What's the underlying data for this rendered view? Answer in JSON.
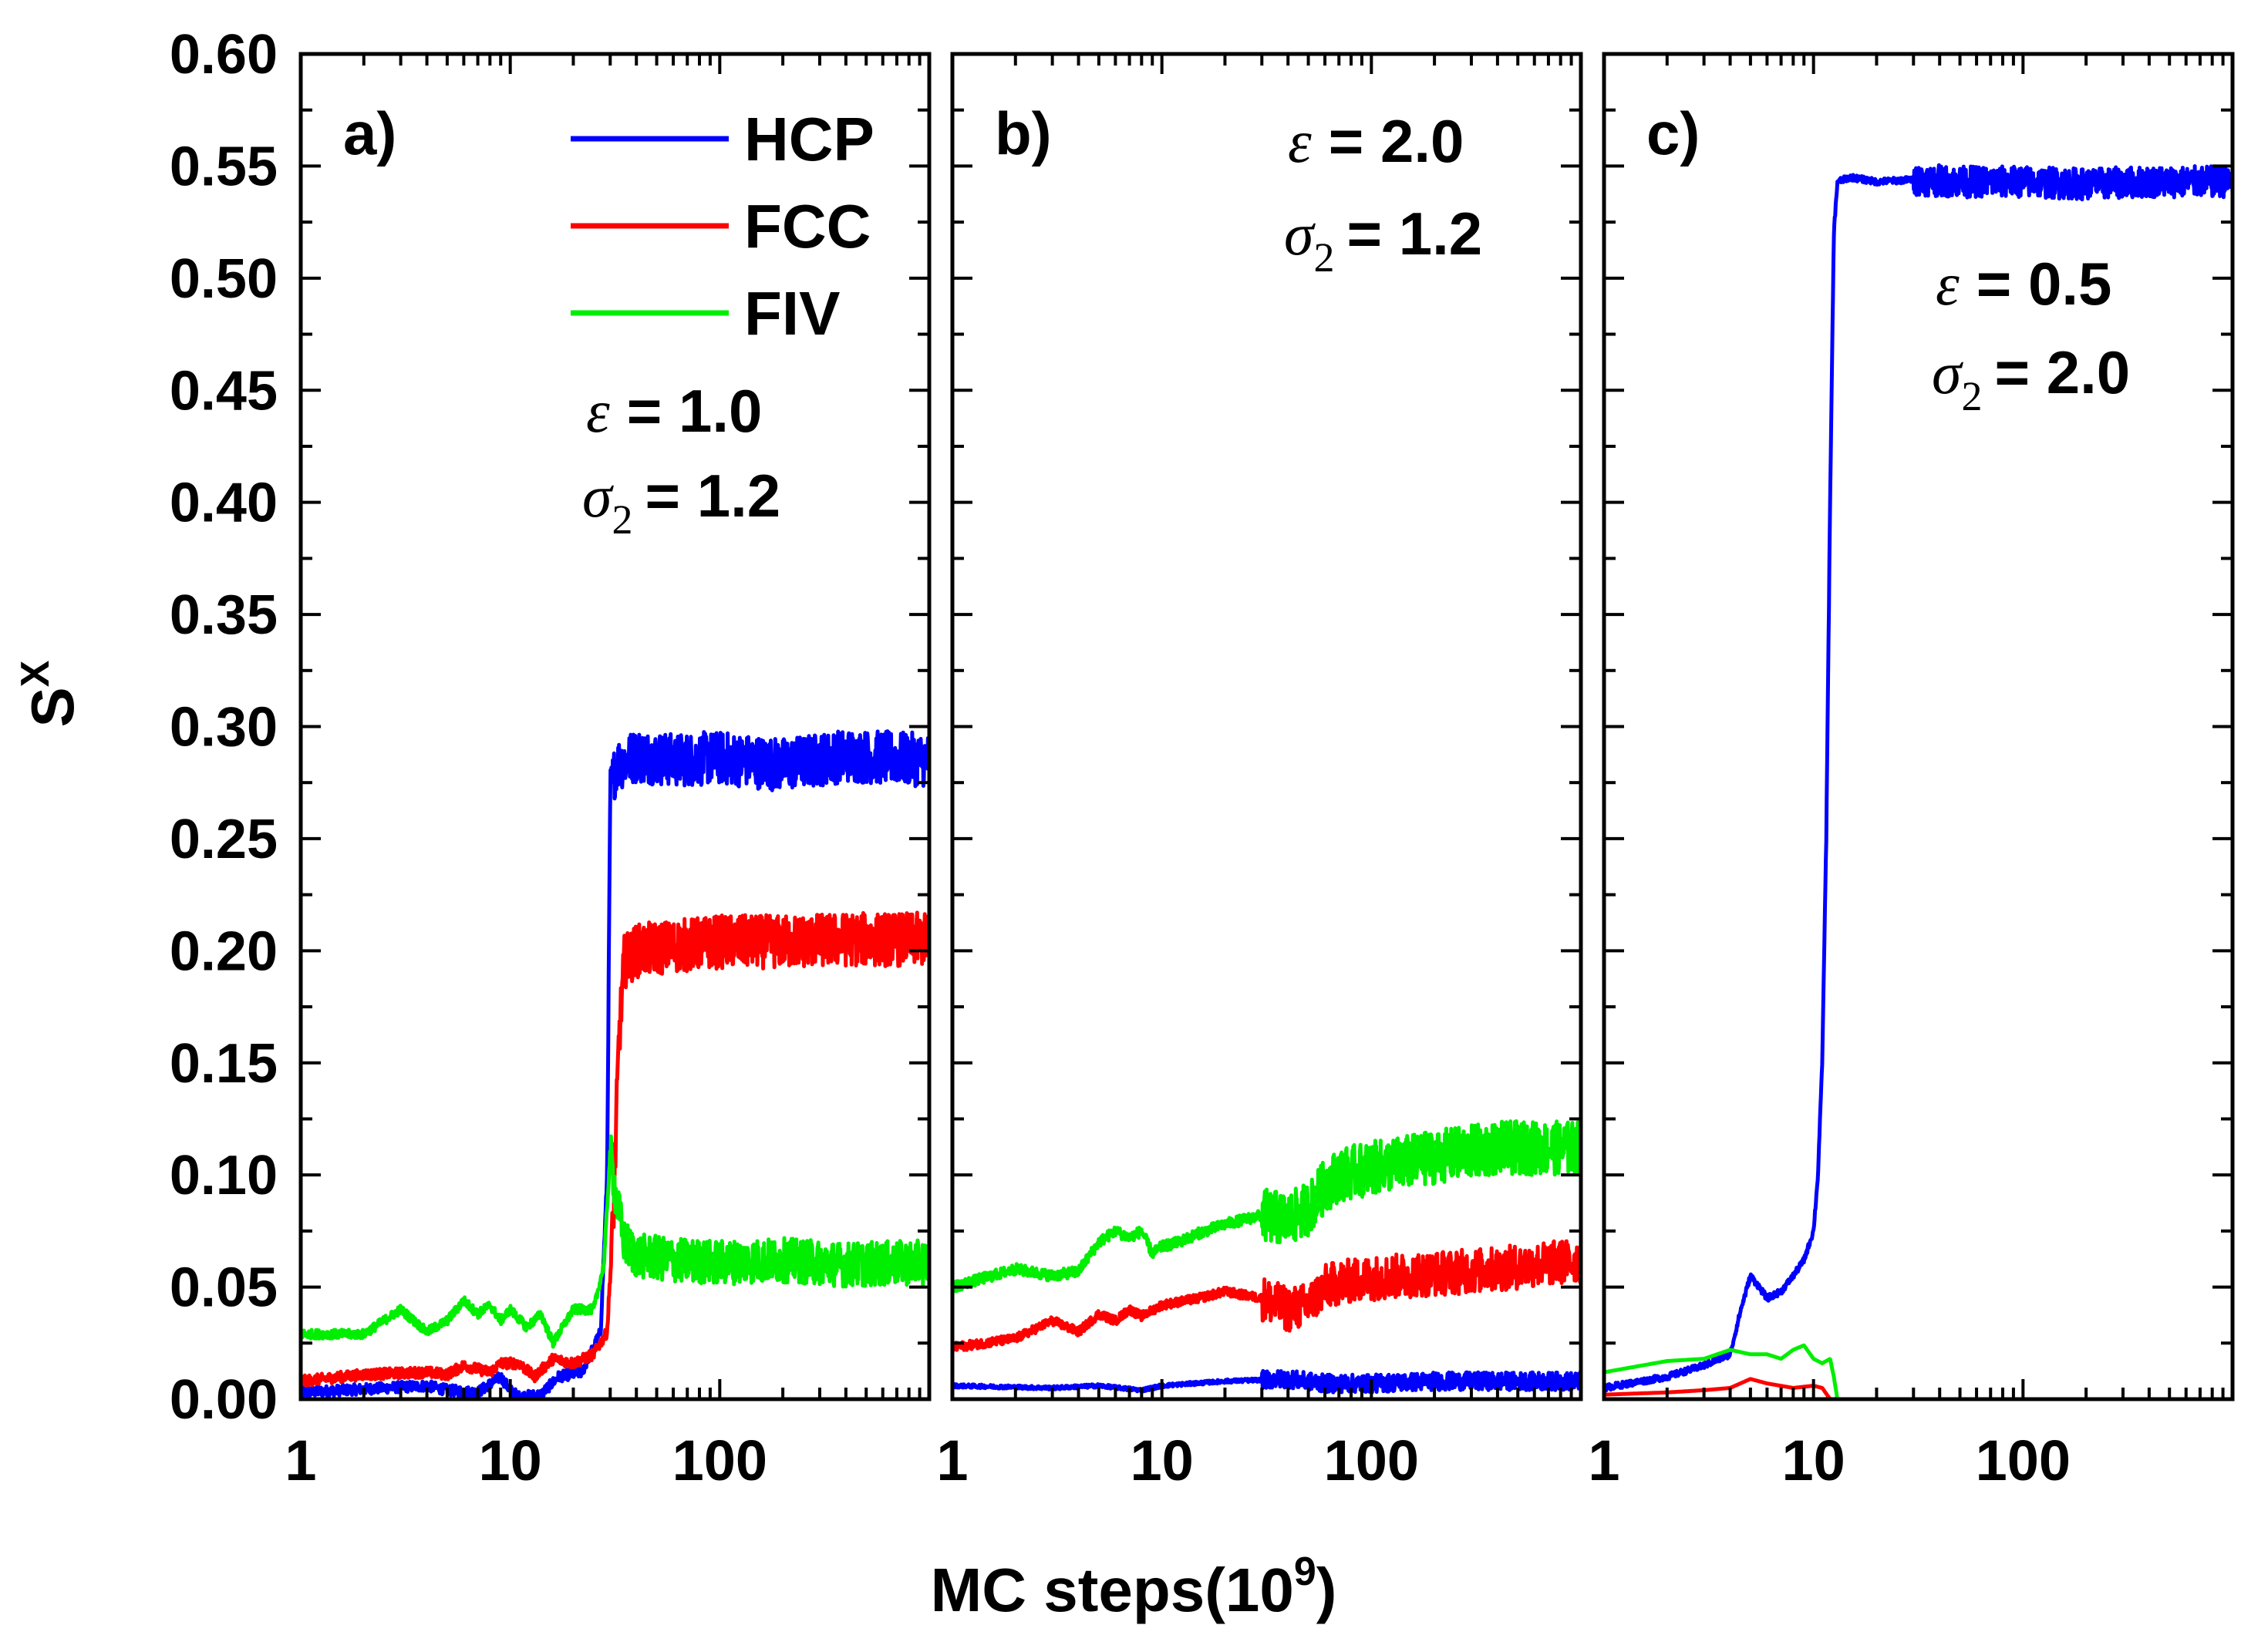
{
  "figure": {
    "ylabel": "S",
    "ylabel_sup": "X",
    "xlabel": "MC steps(10",
    "xlabel_sup": "9",
    "xlabel_close": ")"
  },
  "legend": [
    {
      "name": "HCP",
      "color": "#0000ff"
    },
    {
      "name": "FCC",
      "color": "#ff0000"
    },
    {
      "name": "FIV",
      "color": "#00ee00"
    }
  ],
  "chart_data": [
    {
      "type": "line",
      "panel_label": "a)",
      "xscale": "log",
      "xlim": [
        1,
        1000
      ],
      "ylim": [
        0,
        0.6
      ],
      "xticks": [
        "1",
        "10",
        "100"
      ],
      "yticks": [
        "0.00",
        "0.05",
        "0.10",
        "0.15",
        "0.20",
        "0.25",
        "0.30",
        "0.35",
        "0.40",
        "0.45",
        "0.50",
        "0.55",
        "0.60"
      ],
      "params": {
        "eps_sym": "ε",
        "eps_val": "= 1.0",
        "sigma_sym": "σ",
        "sigma_sub": "2",
        "sigma_val": "= 1.2"
      },
      "series": [
        {
          "name": "HCP",
          "color": "#0000ff",
          "x": [
            1,
            4,
            5,
            7,
            9,
            10,
            11,
            14,
            17,
            22,
            27,
            29,
            30,
            32,
            40,
            60,
            100,
            200,
            400,
            1000
          ],
          "y": [
            0.003,
            0.006,
            0.004,
            0.003,
            0.01,
            0.004,
            0.001,
            0.002,
            0.01,
            0.012,
            0.03,
            0.1,
            0.27,
            0.283,
            0.287,
            0.285,
            0.286,
            0.283,
            0.287,
            0.285
          ],
          "noise": 0.012
        },
        {
          "name": "FCC",
          "color": "#ff0000",
          "x": [
            1,
            2,
            4,
            5,
            6,
            8,
            9,
            11,
            13,
            16,
            20,
            25,
            29,
            31,
            33,
            35,
            40,
            60,
            100,
            200,
            400,
            1000
          ],
          "y": [
            0.008,
            0.011,
            0.012,
            0.011,
            0.015,
            0.012,
            0.016,
            0.016,
            0.01,
            0.018,
            0.016,
            0.02,
            0.03,
            0.08,
            0.16,
            0.195,
            0.2,
            0.202,
            0.204,
            0.204,
            0.205,
            0.205
          ],
          "noise": 0.012
        },
        {
          "name": "FIV",
          "color": "#00ee00",
          "x": [
            1,
            2,
            3,
            4,
            5,
            6,
            7,
            8,
            9,
            10,
            12,
            14,
            16,
            20,
            25,
            28,
            30,
            32,
            35,
            40,
            60,
            100,
            200,
            400,
            1000
          ],
          "y": [
            0.029,
            0.029,
            0.04,
            0.03,
            0.035,
            0.044,
            0.038,
            0.042,
            0.035,
            0.04,
            0.032,
            0.038,
            0.025,
            0.04,
            0.04,
            0.06,
            0.11,
            0.09,
            0.07,
            0.064,
            0.062,
            0.061,
            0.062,
            0.06,
            0.061
          ],
          "noise": 0.01
        }
      ]
    },
    {
      "type": "line",
      "panel_label": "b)",
      "xscale": "log",
      "xlim": [
        1,
        1000
      ],
      "ylim": [
        0,
        0.6
      ],
      "xticks": [
        "1",
        "10",
        "100"
      ],
      "params": {
        "eps_sym": "ε",
        "eps_val": "= 2.0",
        "sigma_sym": "σ",
        "sigma_sub": "2",
        "sigma_val": "= 1.2"
      },
      "series": [
        {
          "name": "HCP",
          "color": "#0000ff",
          "x": [
            1,
            3,
            5,
            8,
            10,
            20,
            40,
            60,
            100,
            200,
            400,
            1000
          ],
          "y": [
            0.006,
            0.005,
            0.006,
            0.004,
            0.006,
            0.008,
            0.009,
            0.007,
            0.007,
            0.008,
            0.008,
            0.008
          ],
          "noise": 0.004
        },
        {
          "name": "FCC",
          "color": "#ff0000",
          "x": [
            1,
            2,
            3,
            4,
            5,
            6,
            7,
            8,
            10,
            15,
            20,
            30,
            40,
            50,
            60,
            70,
            100,
            200,
            400,
            1000
          ],
          "y": [
            0.023,
            0.027,
            0.035,
            0.03,
            0.038,
            0.035,
            0.04,
            0.037,
            0.042,
            0.045,
            0.048,
            0.045,
            0.04,
            0.042,
            0.05,
            0.052,
            0.054,
            0.056,
            0.058,
            0.062
          ],
          "noise": 0.01
        },
        {
          "name": "FIV",
          "color": "#00ee00",
          "x": [
            1,
            2,
            3,
            4,
            5,
            6,
            7,
            8,
            9,
            10,
            12,
            15,
            20,
            30,
            40,
            50,
            60,
            70,
            100,
            200,
            400,
            1000
          ],
          "y": [
            0.05,
            0.058,
            0.055,
            0.057,
            0.07,
            0.075,
            0.072,
            0.075,
            0.065,
            0.068,
            0.07,
            0.074,
            0.078,
            0.082,
            0.08,
            0.085,
            0.095,
            0.1,
            0.103,
            0.108,
            0.112,
            0.112
          ],
          "noise": 0.012
        }
      ]
    },
    {
      "type": "line",
      "panel_label": "c)",
      "xscale": "log",
      "xlim": [
        1,
        1000
      ],
      "ylim": [
        0,
        0.6
      ],
      "xticks": [
        "1",
        "10",
        "100"
      ],
      "params": {
        "eps_sym": "ε",
        "eps_val": "= 0.5",
        "sigma_sym": "σ",
        "sigma_sub": "2",
        "sigma_val": "= 2.0"
      },
      "series": [
        {
          "name": "HCP",
          "color": "#0000ff",
          "x": [
            1,
            2,
            3,
            4,
            4.5,
            5,
            5.5,
            6,
            7,
            8,
            9,
            10,
            10.5,
            11,
            11.5,
            12,
            12.5,
            13,
            15,
            20,
            30,
            50,
            100,
            200,
            400,
            1000
          ],
          "y": [
            0.005,
            0.01,
            0.015,
            0.02,
            0.04,
            0.055,
            0.05,
            0.045,
            0.048,
            0.055,
            0.062,
            0.075,
            0.1,
            0.15,
            0.25,
            0.4,
            0.52,
            0.543,
            0.545,
            0.543,
            0.544,
            0.543,
            0.543,
            0.542,
            0.543,
            0.543
          ],
          "noise": 0.007
        },
        {
          "name": "FCC",
          "color": "#ff0000",
          "x": [
            1,
            2,
            3,
            4,
            5,
            6,
            8,
            10,
            11,
            12,
            13,
            20,
            100,
            1000
          ],
          "y": [
            0.002,
            0.003,
            0.004,
            0.005,
            0.009,
            0.007,
            0.005,
            0.006,
            0.005,
            0.0,
            0.0,
            0.0,
            0.0,
            0.0
          ],
          "noise": 0.0
        },
        {
          "name": "FIV",
          "color": "#00ee00",
          "x": [
            1,
            2,
            3,
            4,
            5,
            6,
            7,
            8,
            9,
            10,
            11,
            12,
            12.5,
            13,
            20,
            100,
            1000
          ],
          "y": [
            0.012,
            0.017,
            0.018,
            0.022,
            0.02,
            0.02,
            0.018,
            0.022,
            0.024,
            0.018,
            0.016,
            0.018,
            0.01,
            0.0,
            0.0,
            0.0,
            0.0
          ],
          "noise": 0.0
        }
      ]
    }
  ]
}
